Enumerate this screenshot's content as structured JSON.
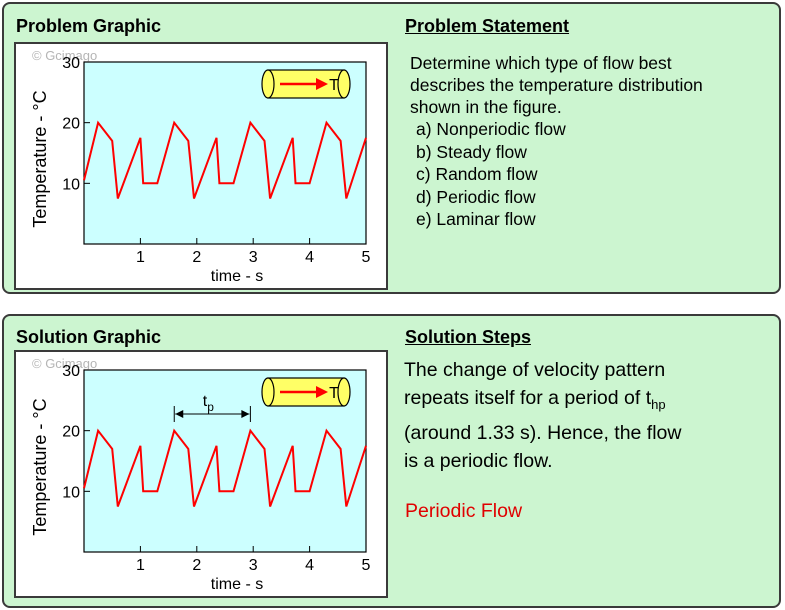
{
  "problem": {
    "graphic_title": "Problem Graphic",
    "statement_title": "Problem Statement",
    "statement_lines": [
      "Determine which type of flow best",
      "describes the temperature distribution",
      "shown in the figure."
    ],
    "choices": [
      "a) Nonperiodic flow",
      "b) Steady flow",
      "c) Random flow",
      "d) Periodic flow",
      "e) Laminar flow"
    ]
  },
  "solution": {
    "graphic_title": "Solution Graphic",
    "steps_title": "Solution Steps",
    "steps_text_1": "The change of velocity pattern",
    "steps_text_2a": "repeats itself for a period of t",
    "steps_text_2sub": "hp",
    "steps_text_3": "(around 1.33 s). Hence, the flow",
    "steps_text_4": "is a periodic flow.",
    "answer": "Periodic Flow",
    "period_label": "t",
    "period_label_sub": "p"
  },
  "graph": {
    "copyright": "© Gcimago",
    "ylabel": "Temperature - °C",
    "xlabel": "time - s",
    "pipe_label": "T",
    "colors": {
      "plot_bg": "#ccffff",
      "line": "#ff0000",
      "panel_bg": "#ccf5d0",
      "pipe": "#ffff66"
    }
  },
  "chart_data": {
    "type": "line",
    "title": "",
    "xlabel": "time - s",
    "ylabel": "Temperature - °C",
    "xlim": [
      0,
      5
    ],
    "ylim": [
      0,
      30
    ],
    "xticks": [
      "1",
      "2",
      "3",
      "4",
      "5"
    ],
    "yticks": [
      "10",
      "20",
      "30"
    ],
    "series": [
      {
        "x": [
          0,
          0.25,
          0.5,
          0.6,
          1.0,
          1.05,
          1.3,
          1.6,
          1.85,
          1.95,
          2.35,
          2.4,
          2.65,
          2.95,
          3.2,
          3.3,
          3.7,
          3.75,
          4.0,
          4.3,
          4.55,
          4.65,
          5.0
        ],
        "y": [
          10.5,
          20,
          17,
          7.5,
          17.5,
          10,
          10,
          20,
          17,
          7.5,
          17.5,
          10,
          10,
          20,
          17,
          7.5,
          17.5,
          10,
          10,
          20,
          17,
          7.5,
          17.5
        ]
      }
    ],
    "period": 1.33
  }
}
